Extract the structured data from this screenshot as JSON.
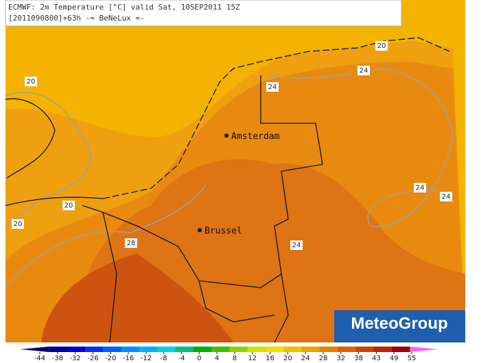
{
  "header": {
    "line1": "ECMWF: 2m Temperature [°C] valid Sat, 10SEP2011 15Z",
    "line2": "[2011090800]+63h -= BeNeLux =-"
  },
  "cities": [
    "Amsterdam",
    "Brussel"
  ],
  "contour_labels": [
    20,
    20,
    20,
    20,
    24,
    24,
    24,
    24,
    24,
    28
  ],
  "logo": "MeteoGroup",
  "colorbar": {
    "ticks": [
      -44,
      -38,
      -32,
      -26,
      -20,
      -16,
      -12,
      -8,
      -4,
      0,
      4,
      8,
      12,
      16,
      20,
      24,
      28,
      32,
      38,
      43,
      49,
      55
    ],
    "colors": [
      "#000070",
      "#0000a0",
      "#0000d0",
      "#0030ff",
      "#0060ff",
      "#0090ff",
      "#00b0ff",
      "#00d0e0",
      "#00c080",
      "#00b000",
      "#40c000",
      "#90d000",
      "#d0e000",
      "#f0e000",
      "#f0c000",
      "#f0a000",
      "#e88000",
      "#e06000",
      "#d04000",
      "#c02000",
      "#a00000",
      "#ff60ff"
    ]
  }
}
